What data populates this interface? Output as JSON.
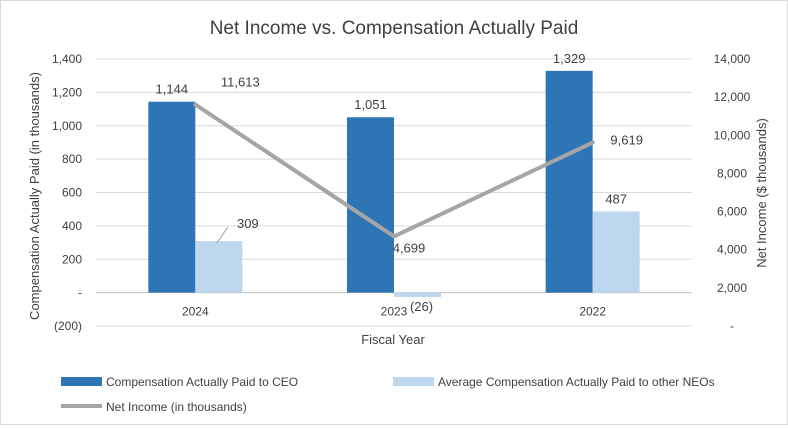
{
  "chart_data": {
    "type": "bar",
    "title": "Net Income vs. Compensation Actually Paid",
    "xlabel": "Fiscal Year",
    "ylabel_left": "Compensation Actually Paid (in thousands)",
    "ylabel_right": "Net Income ($ thousands)",
    "categories": [
      "2024",
      "2023",
      "2022"
    ],
    "left_axis": {
      "min": -200,
      "max": 1400,
      "step": 200,
      "tick_labels": [
        "(200)",
        "-",
        "200",
        "400",
        "600",
        "800",
        "1,000",
        "1,200",
        "1,400"
      ]
    },
    "right_axis": {
      "min": 0,
      "max": 14000,
      "step": 2000,
      "tick_labels": [
        "-",
        "2,000",
        "4,000",
        "6,000",
        "8,000",
        "10,000",
        "12,000",
        "14,000"
      ]
    },
    "series": [
      {
        "name": "Compensation Actually Paid to CEO",
        "type": "bar",
        "axis": "left",
        "color": "#2e75b6",
        "values": [
          1144,
          1051,
          1329
        ],
        "labels": [
          "1,144",
          "1,051",
          "1,329"
        ]
      },
      {
        "name": "Average  Compensation Actually Paid to other NEOs",
        "type": "bar",
        "axis": "left",
        "color": "#bdd7ee",
        "values": [
          309,
          -26,
          487
        ],
        "labels": [
          "309",
          "(26)",
          "487"
        ]
      },
      {
        "name": "Net Income (in thousands)",
        "type": "line",
        "axis": "right",
        "color": "#a5a5a5",
        "values": [
          11613,
          4699,
          9619
        ],
        "labels": [
          "11,613",
          "4,699",
          "9,619"
        ]
      }
    ],
    "legend_position": "bottom",
    "grid": true
  }
}
